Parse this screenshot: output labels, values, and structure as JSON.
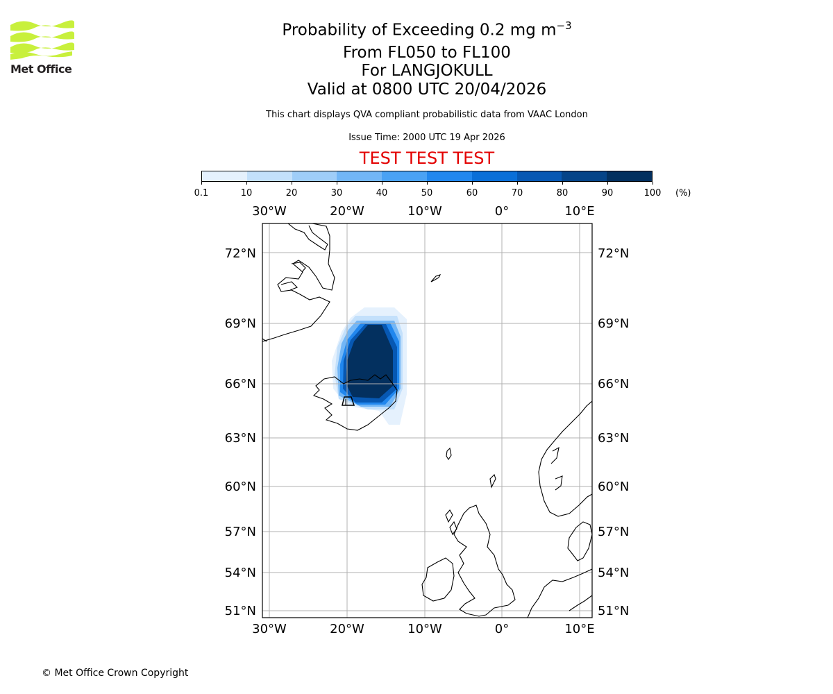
{
  "logo": {
    "text": "Met Office",
    "color": "#c8f03c"
  },
  "title": {
    "line1_prefix": "Probability of Exceeding 0.2 mg m",
    "line1_sup": "−3",
    "line2": "From FL050 to FL100",
    "line3": "For LANGJOKULL",
    "line4": "Valid at 0800 UTC 20/04/2026"
  },
  "description": "This chart displays QVA compliant probabilistic data from VAAC London",
  "issue_time": "Issue Time: 2000 UTC 19 Apr 2026",
  "test_banner": "TEST TEST TEST",
  "colorbar": {
    "ticks": [
      "0.1",
      "10",
      "20",
      "30",
      "40",
      "50",
      "60",
      "70",
      "80",
      "90",
      "100"
    ],
    "unit": "(%)",
    "colors": [
      "#e5f1fd",
      "#c3e0fb",
      "#9fcdf8",
      "#72b6f6",
      "#4aa2f4",
      "#2187ee",
      "#0a6fd8",
      "#0758b3",
      "#054488",
      "#03305f"
    ]
  },
  "map": {
    "lon_labels": [
      "30°W",
      "20°W",
      "10°W",
      "0°",
      "10°E"
    ],
    "lat_labels": [
      "72°N",
      "69°N",
      "66°N",
      "63°N",
      "60°N",
      "57°N",
      "54°N",
      "51°N"
    ],
    "source_volcano": "LANGJOKULL"
  },
  "copyright": "© Met Office Crown Copyright"
}
